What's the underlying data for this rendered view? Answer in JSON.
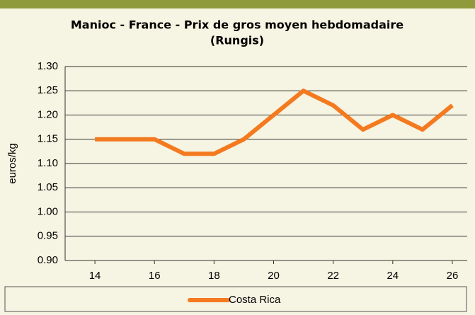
{
  "chart_data": {
    "type": "line",
    "title": [
      "Manioc - France - Prix de gros moyen hebdomadaire",
      "(Rungis)"
    ],
    "y_label": "euros/kg",
    "x": [
      14,
      15,
      16,
      17,
      18,
      19,
      20,
      21,
      22,
      23,
      24,
      25,
      26
    ],
    "series": [
      {
        "name": "Costa Rica",
        "color": "#f47a20",
        "values": [
          1.15,
          1.15,
          1.15,
          1.12,
          1.12,
          1.15,
          1.2,
          1.25,
          1.22,
          1.17,
          1.2,
          1.17,
          1.22
        ]
      }
    ],
    "xlim": [
      13,
      26.5
    ],
    "xticks": [
      14,
      16,
      18,
      20,
      22,
      24,
      26
    ],
    "ylim": [
      0.9,
      1.3
    ],
    "yticks": [
      {
        "value": 0.9,
        "label": "0.90"
      },
      {
        "value": 0.95,
        "label": "0.95"
      },
      {
        "value": 1.0,
        "label": "1.00"
      },
      {
        "value": 1.05,
        "label": "1.05"
      },
      {
        "value": 1.1,
        "label": "1.10"
      },
      {
        "value": 1.15,
        "label": "1.15"
      },
      {
        "value": 1.2,
        "label": "1.20"
      },
      {
        "value": 1.25,
        "label": "1.25"
      },
      {
        "value": 1.3,
        "label": "1.30"
      }
    ],
    "grid": true,
    "legend": "bottom"
  }
}
